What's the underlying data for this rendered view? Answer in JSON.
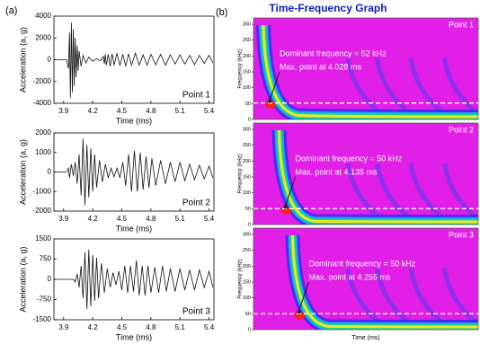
{
  "panel_labels": [
    "(a)",
    "(b)"
  ],
  "title": "Time-Frequency Graph",
  "chart_data": [
    {
      "type": "waveform",
      "label": "Point 1",
      "x_label": "Time (ms)",
      "y_label": "Acceleration (a, g)",
      "xlim": [
        3.8,
        5.45
      ],
      "xticks": [
        3.9,
        4.2,
        4.5,
        4.8,
        5.1,
        5.4
      ],
      "ylim": [
        -4000,
        4000
      ],
      "yticks": [
        -4000,
        -2000,
        0,
        2000,
        4000
      ],
      "color": "#111111",
      "x": [
        3.8,
        3.9,
        3.93,
        3.95,
        3.96,
        3.97,
        3.98,
        3.99,
        4.0,
        4.01,
        4.02,
        4.03,
        4.04,
        4.05,
        4.06,
        4.08,
        4.1,
        4.13,
        4.16,
        4.2,
        4.24,
        4.28,
        4.31,
        4.32,
        4.33,
        4.34,
        4.36,
        4.38,
        4.4,
        4.42,
        4.45,
        4.48,
        4.51,
        4.54,
        4.57,
        4.6,
        4.64,
        4.68,
        4.72,
        4.76,
        4.8,
        4.85,
        4.9,
        4.95,
        5.0,
        5.05,
        5.1,
        5.15,
        5.2,
        5.25,
        5.3,
        5.35,
        5.4,
        5.44
      ],
      "values": [
        0,
        0,
        0,
        -800,
        2500,
        -3500,
        3400,
        -3000,
        2800,
        -2400,
        2000,
        -1600,
        1300,
        -1000,
        800,
        -600,
        400,
        -300,
        250,
        -150,
        100,
        -100,
        300,
        -400,
        500,
        -500,
        500,
        -600,
        550,
        -500,
        600,
        -550,
        500,
        -600,
        550,
        -500,
        600,
        -500,
        450,
        -500,
        500,
        -450,
        500,
        -500,
        450,
        -400,
        450,
        -400,
        400,
        -450,
        400,
        -350,
        400,
        -300
      ]
    },
    {
      "type": "waveform",
      "label": "Point 2",
      "x_label": "Time (ms)",
      "y_label": "Acceleration (a, g)",
      "xlim": [
        3.8,
        5.45
      ],
      "xticks": [
        3.9,
        4.2,
        4.5,
        4.8,
        5.1,
        5.4
      ],
      "ylim": [
        -2000,
        2000
      ],
      "yticks": [
        -2000,
        -1000,
        0,
        1000,
        2000
      ],
      "color": "#111111",
      "x": [
        3.8,
        3.93,
        3.95,
        3.96,
        3.98,
        4.0,
        4.02,
        4.04,
        4.06,
        4.08,
        4.1,
        4.12,
        4.14,
        4.16,
        4.18,
        4.2,
        4.22,
        4.24,
        4.27,
        4.3,
        4.33,
        4.36,
        4.39,
        4.42,
        4.45,
        4.48,
        4.51,
        4.54,
        4.57,
        4.6,
        4.63,
        4.66,
        4.69,
        4.72,
        4.75,
        4.78,
        4.81,
        4.85,
        4.9,
        4.95,
        5.0,
        5.05,
        5.1,
        5.15,
        5.2,
        5.25,
        5.3,
        5.35,
        5.4,
        5.44
      ],
      "values": [
        0,
        0,
        200,
        -300,
        400,
        -200,
        500,
        -600,
        900,
        -1200,
        1700,
        -1700,
        1400,
        -1300,
        1200,
        -1000,
        900,
        -800,
        600,
        -500,
        400,
        -300,
        200,
        -250,
        200,
        -300,
        500,
        -700,
        900,
        -1000,
        1100,
        -1000,
        1000,
        -900,
        800,
        -800,
        700,
        -700,
        600,
        -600,
        500,
        -500,
        500,
        -450,
        400,
        -400,
        350,
        -350,
        300,
        -300
      ]
    },
    {
      "type": "waveform",
      "label": "Point 3",
      "x_label": "Time (ms)",
      "y_label": "Acceleration (a, g)",
      "xlim": [
        3.8,
        5.45
      ],
      "xticks": [
        3.9,
        4.2,
        4.5,
        4.8,
        5.1,
        5.4
      ],
      "ylim": [
        -1500,
        1500
      ],
      "yticks": [
        -1500,
        -750,
        0,
        750,
        1500
      ],
      "color": "#111111",
      "x": [
        3.8,
        4.0,
        4.02,
        4.04,
        4.06,
        4.08,
        4.1,
        4.12,
        4.14,
        4.16,
        4.18,
        4.2,
        4.22,
        4.24,
        4.26,
        4.29,
        4.32,
        4.35,
        4.38,
        4.41,
        4.44,
        4.47,
        4.5,
        4.53,
        4.56,
        4.59,
        4.62,
        4.65,
        4.68,
        4.71,
        4.74,
        4.77,
        4.8,
        4.84,
        4.88,
        4.92,
        4.96,
        5.0,
        5.05,
        5.1,
        5.15,
        5.2,
        5.25,
        5.3,
        5.35,
        5.4,
        5.44
      ],
      "values": [
        0,
        0,
        -100,
        200,
        -300,
        500,
        -700,
        1000,
        -1100,
        1100,
        -1000,
        900,
        -800,
        800,
        -700,
        600,
        -500,
        400,
        -300,
        250,
        -200,
        300,
        -400,
        500,
        -500,
        500,
        -450,
        700,
        -600,
        500,
        -600,
        500,
        -500,
        450,
        -500,
        500,
        -450,
        400,
        -450,
        400,
        -400,
        350,
        -400,
        350,
        -300,
        300,
        -300
      ]
    },
    {
      "type": "spectrogram",
      "label": "Point 1",
      "y_label": "Frequency (kHz)",
      "ylim": [
        0,
        320
      ],
      "yticks": [
        0,
        50,
        100,
        150,
        200,
        250,
        300
      ],
      "dominant_frequency": 52,
      "annotations": [
        "Dominant frequency = 52 kHz",
        "Max. point at 4.028 ms"
      ]
    },
    {
      "type": "spectrogram",
      "label": "Point 2",
      "y_label": "Frequency (kHz)",
      "ylim": [
        0,
        320
      ],
      "yticks": [
        0,
        50,
        100,
        150,
        200,
        250,
        300
      ],
      "dominant_frequency": 50,
      "annotations": [
        "Dominant frequency = 50 kHz",
        "Max. point at 4.135 ms"
      ]
    },
    {
      "type": "spectrogram",
      "label": "Point 3",
      "y_label": "Frequency (kHz)",
      "x_label": "Time (ms)",
      "ylim": [
        0,
        320
      ],
      "yticks": [
        0,
        50,
        100,
        150,
        200,
        250,
        300
      ],
      "dominant_frequency": 50,
      "annotations": [
        "Dominant frequency = 50 kHz",
        "Max. point at 4.255 ms"
      ]
    }
  ]
}
